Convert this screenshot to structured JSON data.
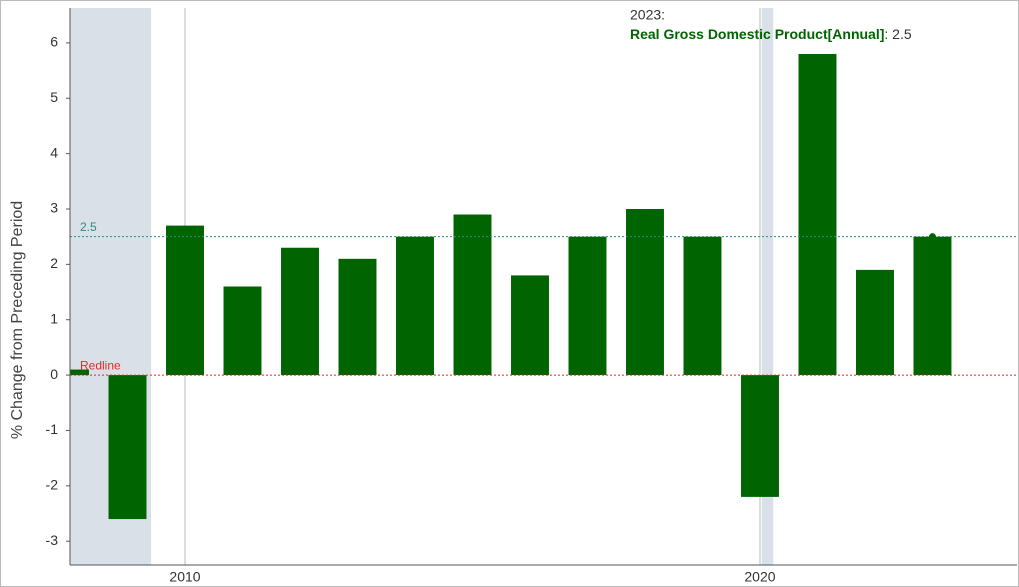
{
  "chart_data": {
    "type": "bar",
    "y_label": "% Change from Preceding Period",
    "x": [
      2008,
      2009,
      2010,
      2011,
      2012,
      2013,
      2014,
      2015,
      2016,
      2017,
      2018,
      2019,
      2020,
      2021,
      2022,
      2023
    ],
    "series": [
      {
        "name": "Real Gross Domestic Product[Annual]",
        "color": "#006400",
        "values": [
          0.1,
          -2.6,
          2.7,
          1.6,
          2.3,
          2.1,
          2.5,
          2.9,
          1.8,
          2.5,
          3.0,
          2.5,
          -2.2,
          5.8,
          1.9,
          2.5
        ]
      }
    ],
    "xlim": [
      2008,
      2024.47
    ],
    "xticks": [
      2010,
      2020
    ],
    "ylim": [
      -3.43,
      6.63
    ],
    "yticks": [
      -3,
      -2,
      -1,
      0,
      1,
      2,
      3,
      4,
      5,
      6
    ],
    "recessions": [
      [
        2008,
        2009.41
      ],
      [
        2020.03,
        2020.23
      ]
    ],
    "recession_color": "#d9e0e8",
    "reference_lines": [
      {
        "value": 2.5,
        "label": "2.5",
        "color": "#2e8b7a"
      },
      {
        "value": 0,
        "label": "Redline",
        "color": "#e8262b"
      }
    ],
    "tooltip": {
      "title": "2023:",
      "text": ": 2.5",
      "index": 15
    }
  }
}
